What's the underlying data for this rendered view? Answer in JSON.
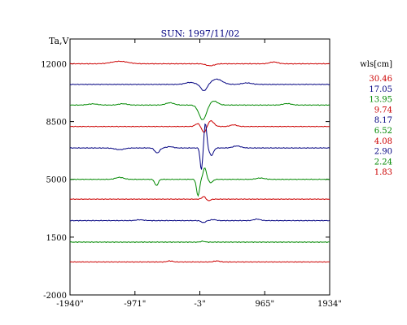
{
  "chart_data": {
    "type": "line",
    "title": "SUN: 1997/11/02",
    "ylabel": "Ta,V",
    "xlim": [
      -1940,
      1934
    ],
    "ylim": [
      -2000,
      13500
    ],
    "x_ticks": [
      -1940,
      -971,
      -3,
      965,
      1934
    ],
    "x_tick_labels": [
      "-1940\"",
      "-971\"",
      "-3\"",
      "965\"",
      "1934\""
    ],
    "y_ticks": [
      12000,
      8500,
      5000,
      1500,
      -2000
    ],
    "y_tick_labels": [
      "12000",
      "8500",
      "5000",
      "1500",
      "-2000"
    ],
    "legend_title": "wls[cm]",
    "legend_position": "right",
    "grid": false,
    "series": [
      {
        "name": "30.46",
        "color": "#cc0000",
        "baseline": 12000,
        "features": [
          [
            -1200,
            150,
            120
          ],
          [
            150,
            -120,
            60
          ],
          [
            1100,
            110,
            60
          ]
        ]
      },
      {
        "name": "17.05",
        "color": "#000080",
        "baseline": 10750,
        "features": [
          [
            -150,
            120,
            70
          ],
          [
            60,
            -400,
            45
          ],
          [
            250,
            320,
            80
          ],
          [
            700,
            90,
            70
          ]
        ]
      },
      {
        "name": "13.95",
        "color": "#008800",
        "baseline": 9500,
        "features": [
          [
            -1600,
            70,
            70
          ],
          [
            -1150,
            80,
            60
          ],
          [
            -450,
            140,
            60
          ],
          [
            40,
            -900,
            55
          ],
          [
            200,
            250,
            60
          ],
          [
            1300,
            90,
            60
          ]
        ]
      },
      {
        "name": "9.74",
        "color": "#cc0000",
        "baseline": 8200,
        "features": [
          [
            -30,
            180,
            40
          ],
          [
            60,
            -400,
            35
          ],
          [
            160,
            350,
            45
          ],
          [
            500,
            100,
            50
          ]
        ]
      },
      {
        "name": "8.17",
        "color": "#000080",
        "baseline": 6900,
        "features": [
          [
            -1200,
            -100,
            70
          ],
          [
            -640,
            -300,
            35
          ],
          [
            -450,
            80,
            50
          ],
          [
            20,
            -1350,
            18
          ],
          [
            80,
            1500,
            20
          ],
          [
            170,
            -450,
            30
          ],
          [
            550,
            120,
            60
          ]
        ]
      },
      {
        "name": "6.52",
        "color": "#008800",
        "baseline": 5000,
        "features": [
          [
            -1200,
            120,
            60
          ],
          [
            -650,
            -380,
            25
          ],
          [
            -30,
            -1000,
            22
          ],
          [
            70,
            700,
            25
          ],
          [
            160,
            -200,
            30
          ],
          [
            900,
            80,
            60
          ]
        ]
      },
      {
        "name": "4.08",
        "color": "#cc0000",
        "baseline": 3800,
        "features": [
          [
            60,
            170,
            30
          ],
          [
            120,
            -110,
            30
          ]
        ]
      },
      {
        "name": "2.90",
        "color": "#000080",
        "baseline": 2500,
        "features": [
          [
            -900,
            50,
            60
          ],
          [
            50,
            -120,
            30
          ],
          [
            200,
            60,
            40
          ],
          [
            850,
            90,
            50
          ]
        ]
      },
      {
        "name": "2.24",
        "color": "#008800",
        "baseline": 1200,
        "features": [
          [
            40,
            50,
            30
          ]
        ]
      },
      {
        "name": "1.83",
        "color": "#cc0000",
        "baseline": 0,
        "features": [
          [
            -450,
            60,
            40
          ],
          [
            250,
            60,
            40
          ]
        ]
      }
    ]
  }
}
